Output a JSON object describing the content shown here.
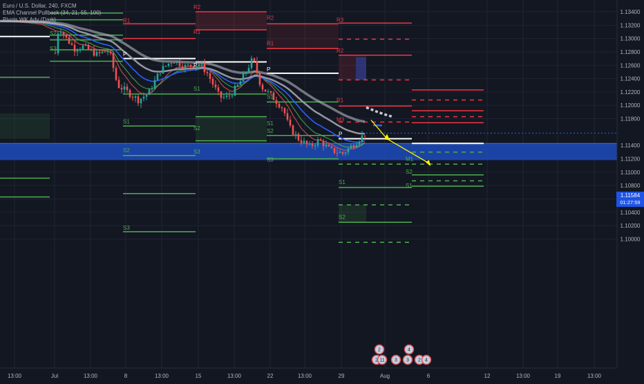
{
  "legend": {
    "symbol": "Euro / U.S. Dollar, 240, FXCM",
    "indicator1": "EMA Channel Pullback (34, 21, 55, 100)",
    "indicator2": "Pivots WK Adv (Dark)"
  },
  "price_axis": {
    "labels": [
      "1.13400",
      "1.13200",
      "1.13000",
      "1.12800",
      "1.12600",
      "1.12400",
      "1.12200",
      "1.12000",
      "1.11800",
      "1.11400",
      "1.11200",
      "1.11000",
      "1.10800",
      "1.10600",
      "1.10400",
      "1.10200",
      "1.10000"
    ],
    "current_price": "1.11584",
    "countdown": "01:27:59"
  },
  "time_axis": {
    "labels": [
      "13:00",
      "Jul",
      "13:00",
      "8",
      "13:00",
      "15",
      "13:00",
      "22",
      "13:00",
      "29",
      "Aug",
      "6",
      "12",
      "13:00",
      "19",
      "13:00"
    ]
  },
  "pivot_labels": [
    "R2",
    "R1",
    "S2",
    "R1",
    "S3",
    "P",
    "P",
    "S1",
    "R2",
    "R3",
    "R1",
    "P",
    "S1",
    "R2",
    "S1",
    "S2",
    "S2",
    "S3",
    "R1",
    "S1",
    "M3",
    "P",
    "S2",
    "S3",
    "S1",
    "S2",
    "M1",
    "S2",
    "S3",
    "S1"
  ],
  "event_badges": [
    "2",
    "4",
    "2",
    "11",
    "3",
    "3",
    "2",
    "4"
  ],
  "colors": {
    "background": "#131722",
    "up_candle": "#26a69a",
    "down_candle": "#ef5350",
    "resistance": "#f23645",
    "support": "#4caf50",
    "pivot": "#ffffff",
    "zone": "#1e50c8",
    "arrow": "#ffff00"
  },
  "chart_data": {
    "type": "candlestick",
    "symbol": "EURUSD",
    "timeframe": "240",
    "y_range": [
      1.099,
      1.1355
    ],
    "current_price": 1.11584,
    "support_zone": [
      1.1118,
      1.1143
    ],
    "trend_path": [
      {
        "date": "Jul 26",
        "price": 1.1178
      },
      {
        "date": "Jul 28",
        "price": 1.115
      },
      {
        "date": "Aug 3",
        "price": 1.1112
      }
    ]
  }
}
